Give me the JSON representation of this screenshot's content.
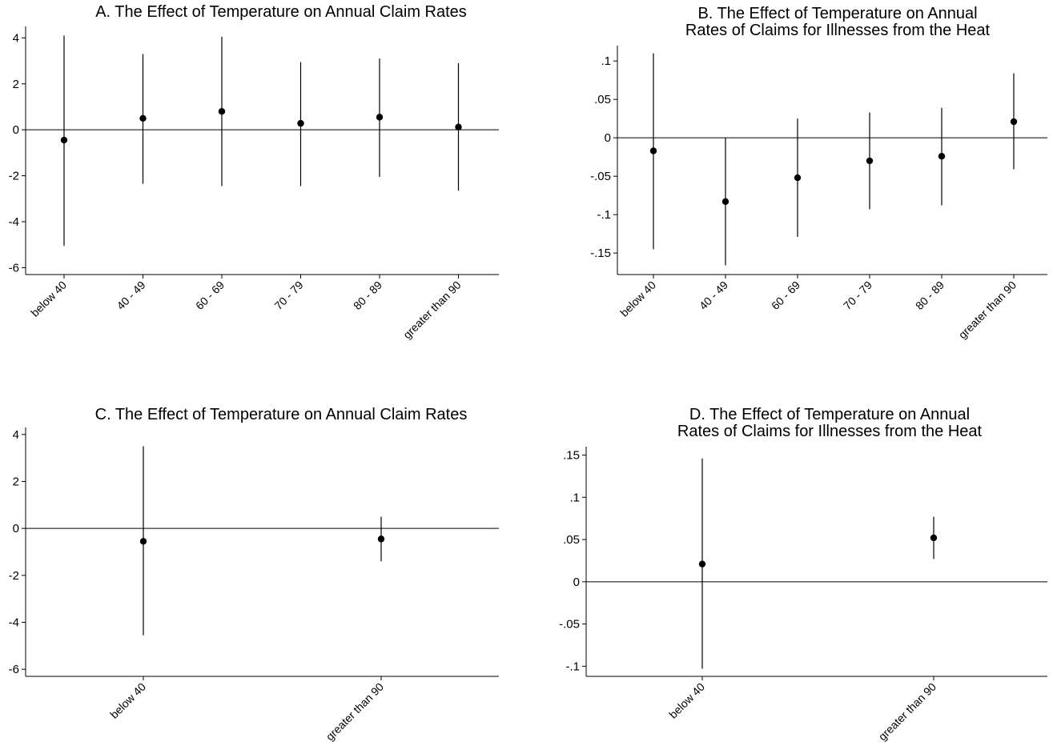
{
  "chart_data": [
    {
      "type": "scatter",
      "panel": "A",
      "title_lines": [
        "A. The Effect of Temperature on Annual Claim Rates"
      ],
      "xlabel": "",
      "ylabel": "",
      "categories": [
        "below 40",
        "40 - 49",
        "60 - 69",
        "70 - 79",
        "80 - 89",
        "greater than 90"
      ],
      "values": [
        -0.45,
        0.5,
        0.8,
        0.28,
        0.55,
        0.12
      ],
      "ci_lower": [
        -5.05,
        -2.35,
        -2.45,
        -2.45,
        -2.05,
        -2.65
      ],
      "ci_upper": [
        4.1,
        3.3,
        4.05,
        2.95,
        3.1,
        2.9
      ],
      "yticks": [
        4,
        2,
        0,
        -2,
        -4,
        -6
      ],
      "ytick_labels": [
        "4",
        "2",
        "0",
        "-2",
        "-4",
        "-6"
      ],
      "ylim": [
        -6.3,
        4.5
      ],
      "zero_line": 0,
      "grid": false,
      "legend": "none"
    },
    {
      "type": "scatter",
      "panel": "B",
      "title_lines": [
        "B. The Effect of Temperature on Annual",
        "Rates of Claims for Illnesses from the Heat"
      ],
      "xlabel": "",
      "ylabel": "",
      "categories": [
        "below 40",
        "40 - 49",
        "60 - 69",
        "70 - 79",
        "80 - 89",
        "greater than 90"
      ],
      "values": [
        -0.017,
        -0.083,
        -0.052,
        -0.03,
        -0.024,
        0.021
      ],
      "ci_lower": [
        -0.145,
        -0.166,
        -0.129,
        -0.093,
        -0.088,
        -0.041
      ],
      "ci_upper": [
        0.11,
        0.0,
        0.025,
        0.033,
        0.039,
        0.084
      ],
      "yticks": [
        0.1,
        0.05,
        0,
        -0.05,
        -0.1,
        -0.15
      ],
      "ytick_labels": [
        ".1",
        ".05",
        "0",
        "-.05",
        "-.1",
        "-.15"
      ],
      "ylim": [
        -0.178,
        0.12
      ],
      "zero_line": 0,
      "grid": false,
      "legend": "none"
    },
    {
      "type": "scatter",
      "panel": "C",
      "title_lines": [
        "C. The Effect of Temperature on Annual Claim Rates"
      ],
      "xlabel": "",
      "ylabel": "",
      "categories": [
        "below 40",
        "greater than 90"
      ],
      "values": [
        -0.55,
        -0.45
      ],
      "ci_lower": [
        -4.55,
        -1.4
      ],
      "ci_upper": [
        3.5,
        0.5
      ],
      "yticks": [
        4,
        2,
        0,
        -2,
        -4,
        -6
      ],
      "ytick_labels": [
        "4",
        "2",
        "0",
        "-2",
        "-4",
        "-6"
      ],
      "ylim": [
        -6.3,
        4.3
      ],
      "zero_line": 0,
      "grid": false,
      "legend": "none"
    },
    {
      "type": "scatter",
      "panel": "D",
      "title_lines": [
        "D. The Effect of Temperature on Annual",
        "Rates of Claims for Illnesses from the Heat"
      ],
      "xlabel": "",
      "ylabel": "",
      "categories": [
        "below 40",
        "greater than 90"
      ],
      "values": [
        0.021,
        0.052
      ],
      "ci_lower": [
        -0.103,
        0.027
      ],
      "ci_upper": [
        0.146,
        0.077
      ],
      "yticks": [
        0.15,
        0.1,
        0.05,
        0,
        -0.05,
        -0.1
      ],
      "ytick_labels": [
        ".15",
        ".1",
        ".05",
        "0",
        "-.05",
        "-.1"
      ],
      "ylim": [
        -0.112,
        0.16
      ],
      "zero_line": 0,
      "grid": false,
      "legend": "none"
    }
  ]
}
